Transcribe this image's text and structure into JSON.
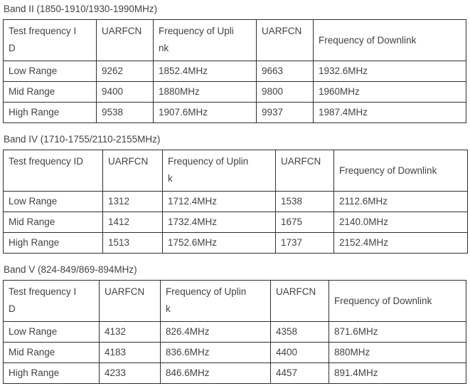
{
  "colors": {
    "text": "#3f4347",
    "border": "#2f2f2f",
    "background": "#ffffff"
  },
  "sections": [
    {
      "title": "Band II (1850-1910/1930-1990MHz)",
      "headers": [
        "Test frequency I\nD",
        "UARFCN",
        "Frequency of Upli\nnk",
        "UARFCN",
        "Frequency of Downlink"
      ],
      "rows": [
        [
          "Low Range",
          "9262",
          "1852.4MHz",
          "9663",
          "1932.6MHz"
        ],
        [
          "Mid Range",
          "9400",
          "1880MHz",
          "9800",
          "1960MHz"
        ],
        [
          "High Range",
          "9538",
          "1907.6MHz",
          "9937",
          "1987.4MHz"
        ]
      ]
    },
    {
      "title": "Band IV (1710-1755/2110-2155MHz)",
      "headers": [
        "Test frequency ID",
        "UARFCN",
        "Frequency of Uplin\nk",
        "UARFCN",
        "Frequency of Downlink"
      ],
      "rows": [
        [
          "Low Range",
          "1312",
          "1712.4MHz",
          "1538",
          "2112.6MHz"
        ],
        [
          "Mid Range",
          "1412",
          "1732.4MHz",
          "1675",
          "2140.0MHz"
        ],
        [
          "High Range",
          "1513",
          "1752.6MHz",
          "1737",
          "2152.4MHz"
        ]
      ]
    },
    {
      "title": "Band V (824-849/869-894MHz)",
      "headers": [
        "Test frequency I\nD",
        "UARFCN",
        "Frequency of Uplin\nk",
        "UARFCN",
        "Frequency of Downlink"
      ],
      "rows": [
        [
          "Low Range",
          "4132",
          "826.4MHz",
          "4358",
          "871.6MHz"
        ],
        [
          "Mid Range",
          "4183",
          "836.6MHz",
          "4400",
          "880MHz"
        ],
        [
          "High Range",
          "4233",
          "846.6MHz",
          "4457",
          "891.4MHz"
        ]
      ]
    }
  ]
}
